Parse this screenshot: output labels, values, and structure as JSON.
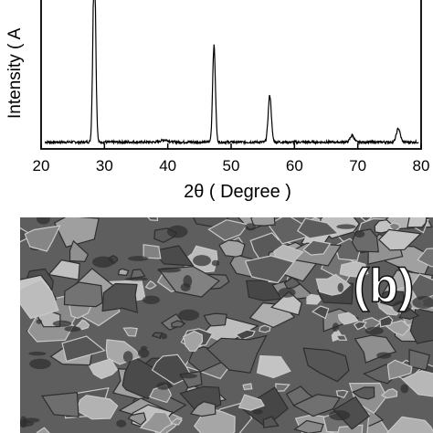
{
  "chart_data": {
    "type": "line",
    "xlabel": "2θ ( Degree )",
    "ylabel": "Intensity ( A",
    "xlim": [
      20,
      80
    ],
    "xticks": [
      20,
      30,
      40,
      50,
      60,
      70,
      80
    ],
    "tick_labels": [
      "20",
      "30",
      "40",
      "50",
      "60",
      "70",
      "80"
    ],
    "ylim": [
      0,
      100
    ],
    "grid": false,
    "series": [
      {
        "baseline": 4.5,
        "noise": 0.8,
        "peaks": [
          {
            "x": 28.4,
            "height": 125,
            "width": 0.22
          },
          {
            "x": 47.3,
            "height": 64,
            "width": 0.22
          },
          {
            "x": 56.1,
            "height": 31,
            "width": 0.25
          },
          {
            "x": 69.1,
            "height": 4.5,
            "width": 0.3
          },
          {
            "x": 76.4,
            "height": 9,
            "width": 0.3
          },
          {
            "x": 39.5,
            "height": 1.5,
            "width": 0.6
          }
        ]
      }
    ]
  },
  "sem": {
    "label": "(b)",
    "colors": {
      "base": "#6f6f6f",
      "dark": "#2e2e2e",
      "light": "#c9c9c9"
    }
  }
}
